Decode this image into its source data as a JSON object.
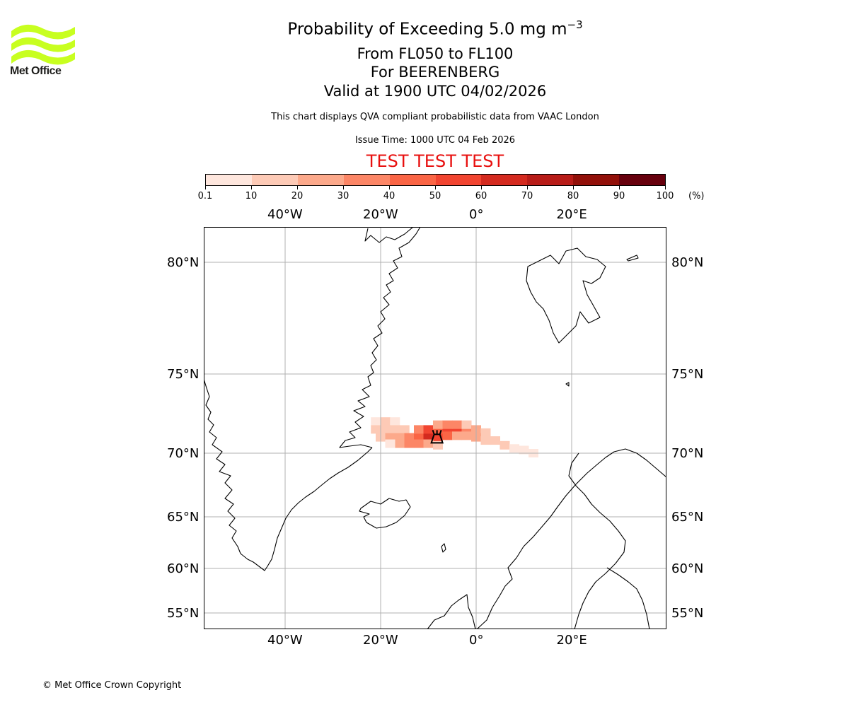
{
  "header": {
    "title_main": "Probability of Exceeding 5.0 mg m",
    "title_sup": "−3",
    "level_range": "From FL050 to FL100",
    "volcano": "For BEERENBERG",
    "valid_time": "Valid at 1900 UTC 04/02/2026",
    "description": "This chart displays QVA compliant probabilistic data from VAAC London",
    "issue_time": "Issue Time: 1000 UTC 04 Feb 2026",
    "test_banner": "TEST TEST TEST"
  },
  "logo": {
    "name": "Met Office"
  },
  "colorbar": {
    "tick_labels": [
      "0.1",
      "10",
      "20",
      "30",
      "40",
      "50",
      "60",
      "70",
      "80",
      "90",
      "100"
    ],
    "unit": "(%)",
    "colors": [
      "#fee6dd",
      "#fdcab6",
      "#fca98b",
      "#fc8666",
      "#fa6545",
      "#f14430",
      "#d42a1f",
      "#b81c18",
      "#921009",
      "#67000d"
    ]
  },
  "map": {
    "lon_labels_top": [
      "40°W",
      "20°W",
      "0°",
      "20°E"
    ],
    "lon_labels_bottom": [
      "40°W",
      "20°W",
      "0°",
      "20°E"
    ],
    "lat_labels_left": [
      "80°N",
      "75°N",
      "70°N",
      "65°N",
      "60°N",
      "55°N"
    ],
    "lat_labels_right": [
      "80°N",
      "75°N",
      "70°N",
      "65°N",
      "60°N",
      "55°N"
    ],
    "grid_color": "#b0b0b0",
    "coast_color": "#000000",
    "volcano_symbol": "volcano-icon"
  },
  "chart_data": {
    "type": "heatmap",
    "title": "Probability of Exceeding 5.0 mg m−3",
    "variable": "probability of exceedance",
    "units": "%",
    "levels": [
      0.1,
      10,
      20,
      30,
      40,
      50,
      60,
      70,
      80,
      90,
      100
    ],
    "volcano_location": {
      "name": "BEERENBERG",
      "lon": -8.2,
      "lat": 71.1
    },
    "plume_cells": [
      {
        "lon": -21.0,
        "lat": 72.0,
        "p": 8
      },
      {
        "lon": -19.0,
        "lat": 72.0,
        "p": 10
      },
      {
        "lon": -17.0,
        "lat": 72.0,
        "p": 6
      },
      {
        "lon": -21.0,
        "lat": 71.5,
        "p": 12
      },
      {
        "lon": -19.0,
        "lat": 71.5,
        "p": 18
      },
      {
        "lon": -17.0,
        "lat": 71.5,
        "p": 14
      },
      {
        "lon": -15.0,
        "lat": 71.5,
        "p": 10
      },
      {
        "lon": -20.0,
        "lat": 71.0,
        "p": 14
      },
      {
        "lon": -18.0,
        "lat": 71.0,
        "p": 22
      },
      {
        "lon": -16.0,
        "lat": 71.0,
        "p": 28
      },
      {
        "lon": -14.0,
        "lat": 71.0,
        "p": 34
      },
      {
        "lon": -12.0,
        "lat": 71.0,
        "p": 45
      },
      {
        "lon": -10.0,
        "lat": 71.0,
        "p": 62
      },
      {
        "lon": -8.0,
        "lat": 71.0,
        "p": 58
      },
      {
        "lon": -16.0,
        "lat": 70.6,
        "p": 26
      },
      {
        "lon": -14.0,
        "lat": 70.6,
        "p": 38
      },
      {
        "lon": -12.0,
        "lat": 70.6,
        "p": 34
      },
      {
        "lon": -10.0,
        "lat": 70.6,
        "p": 22
      },
      {
        "lon": -12.0,
        "lat": 71.5,
        "p": 36
      },
      {
        "lon": -10.0,
        "lat": 71.5,
        "p": 55
      },
      {
        "lon": -8.0,
        "lat": 71.5,
        "p": 48
      },
      {
        "lon": -6.0,
        "lat": 71.5,
        "p": 52
      },
      {
        "lon": -4.0,
        "lat": 71.5,
        "p": 58
      },
      {
        "lon": -2.0,
        "lat": 71.5,
        "p": 36
      },
      {
        "lon": -8.0,
        "lat": 71.8,
        "p": 22
      },
      {
        "lon": -6.0,
        "lat": 71.8,
        "p": 32
      },
      {
        "lon": -4.0,
        "lat": 71.8,
        "p": 38
      },
      {
        "lon": -2.0,
        "lat": 71.8,
        "p": 18
      },
      {
        "lon": -6.0,
        "lat": 71.1,
        "p": 40
      },
      {
        "lon": -4.0,
        "lat": 71.1,
        "p": 26
      },
      {
        "lon": -2.0,
        "lat": 71.1,
        "p": 22
      },
      {
        "lon": 0.0,
        "lat": 71.5,
        "p": 20
      },
      {
        "lon": 2.0,
        "lat": 71.3,
        "p": 16
      },
      {
        "lon": 0.0,
        "lat": 71.0,
        "p": 24
      },
      {
        "lon": 2.0,
        "lat": 70.8,
        "p": 14
      },
      {
        "lon": 4.0,
        "lat": 70.8,
        "p": 12
      },
      {
        "lon": 6.0,
        "lat": 70.5,
        "p": 10
      },
      {
        "lon": 8.0,
        "lat": 70.3,
        "p": 8
      },
      {
        "lon": 10.0,
        "lat": 70.2,
        "p": 5
      },
      {
        "lon": 12.0,
        "lat": 70.0,
        "p": 3
      },
      {
        "lon": -18.0,
        "lat": 70.6,
        "p": 8
      },
      {
        "lon": -8.0,
        "lat": 70.5,
        "p": 12
      }
    ]
  },
  "footer": {
    "copyright": "© Met Office Crown Copyright"
  }
}
